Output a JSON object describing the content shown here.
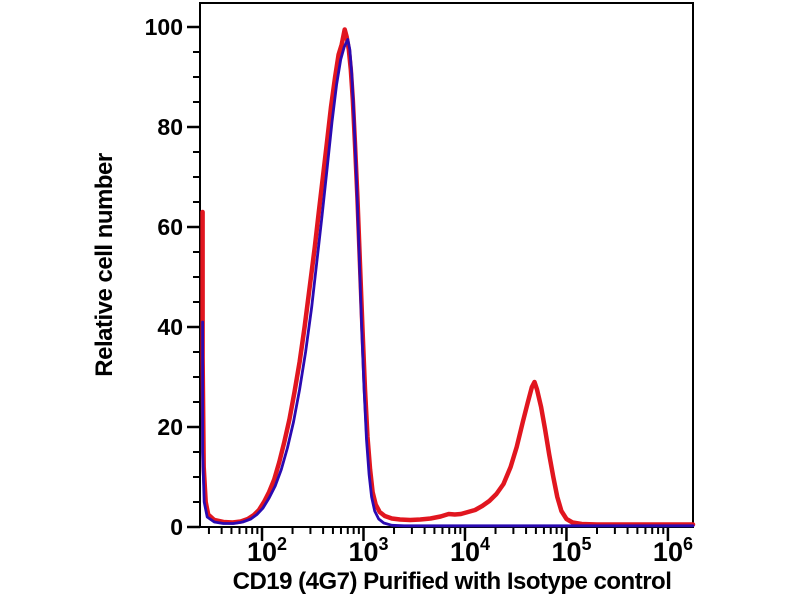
{
  "figure": {
    "background_color": "#ffffff",
    "frame_color": "#000000",
    "tick_color": "#000000",
    "text_color": "#000000"
  },
  "chart_data": {
    "type": "line",
    "subtype": "flow-cytometry-histogram-overlay",
    "title": "",
    "xlabel": "CD19 (4G7) Purified with Isotype control",
    "ylabel": "Relative cell number",
    "x_scale": "log",
    "x_domain_log10": [
      1.389,
      6.247
    ],
    "y_domain": [
      0,
      104.8
    ],
    "grid": false,
    "legend": false,
    "y_major_ticks": [
      0,
      20,
      40,
      60,
      80,
      100
    ],
    "y_minor_tick_step": 5,
    "x_major_ticks_log10": [
      2,
      3,
      4,
      5,
      6
    ],
    "x_major_tick_labels": [
      {
        "base": "10",
        "exponent": "2"
      },
      {
        "base": "10",
        "exponent": "3"
      },
      {
        "base": "10",
        "exponent": "4"
      },
      {
        "base": "10",
        "exponent": "5"
      },
      {
        "base": "10",
        "exponent": "6"
      }
    ],
    "x_minor_tick_mantissas": [
      2,
      3,
      4,
      5,
      6,
      7,
      8,
      9
    ],
    "series": [
      {
        "name": "CD19 (4G7) Purified",
        "color": "#e1161f",
        "stroke_width": 4.5,
        "peaks": [
          {
            "x_log10": 2.815,
            "height": 99.5
          },
          {
            "x_log10": 4.685,
            "height": 29
          }
        ],
        "edge_spike_height": 63,
        "points_log10x_y": [
          [
            1.415,
            63
          ],
          [
            1.415,
            34
          ],
          [
            1.425,
            12
          ],
          [
            1.445,
            5
          ],
          [
            1.47,
            2.5
          ],
          [
            1.53,
            1.4
          ],
          [
            1.62,
            1.0
          ],
          [
            1.71,
            0.9
          ],
          [
            1.79,
            1.1
          ],
          [
            1.86,
            1.6
          ],
          [
            1.92,
            2.4
          ],
          [
            1.97,
            3.4
          ],
          [
            2.02,
            5
          ],
          [
            2.07,
            7
          ],
          [
            2.12,
            9.5
          ],
          [
            2.17,
            13
          ],
          [
            2.22,
            17
          ],
          [
            2.27,
            21.5
          ],
          [
            2.32,
            27
          ],
          [
            2.37,
            33
          ],
          [
            2.42,
            40
          ],
          [
            2.47,
            48
          ],
          [
            2.52,
            56
          ],
          [
            2.56,
            63
          ],
          [
            2.6,
            70
          ],
          [
            2.64,
            77
          ],
          [
            2.68,
            84
          ],
          [
            2.72,
            90
          ],
          [
            2.755,
            94.5
          ],
          [
            2.785,
            96.5
          ],
          [
            2.815,
            99.5
          ],
          [
            2.835,
            98
          ],
          [
            2.855,
            95.5
          ],
          [
            2.875,
            91.5
          ],
          [
            2.895,
            85.5
          ],
          [
            2.915,
            77
          ],
          [
            2.94,
            66
          ],
          [
            2.965,
            53
          ],
          [
            2.99,
            39.5
          ],
          [
            3.015,
            27.5
          ],
          [
            3.04,
            18
          ],
          [
            3.065,
            11.5
          ],
          [
            3.09,
            7
          ],
          [
            3.12,
            4.5
          ],
          [
            3.16,
            3
          ],
          [
            3.21,
            2.2
          ],
          [
            3.28,
            1.7
          ],
          [
            3.36,
            1.5
          ],
          [
            3.46,
            1.4
          ],
          [
            3.56,
            1.5
          ],
          [
            3.66,
            1.7
          ],
          [
            3.76,
            2.1
          ],
          [
            3.84,
            2.6
          ],
          [
            3.9,
            2.5
          ],
          [
            3.96,
            2.6
          ],
          [
            4.03,
            3
          ],
          [
            4.1,
            3.4
          ],
          [
            4.17,
            4.2
          ],
          [
            4.24,
            5.2
          ],
          [
            4.31,
            6.6
          ],
          [
            4.38,
            8.6
          ],
          [
            4.45,
            12
          ],
          [
            4.51,
            16
          ],
          [
            4.57,
            21
          ],
          [
            4.62,
            25
          ],
          [
            4.66,
            28
          ],
          [
            4.685,
            29
          ],
          [
            4.71,
            27.5
          ],
          [
            4.75,
            24
          ],
          [
            4.79,
            19.5
          ],
          [
            4.83,
            14.5
          ],
          [
            4.87,
            10
          ],
          [
            4.91,
            6
          ],
          [
            4.95,
            3.2
          ],
          [
            5.0,
            1.6
          ],
          [
            5.06,
            0.9
          ],
          [
            5.15,
            0.6
          ],
          [
            5.3,
            0.5
          ],
          [
            5.55,
            0.5
          ],
          [
            5.8,
            0.5
          ],
          [
            6.05,
            0.5
          ],
          [
            6.247,
            0.5
          ]
        ]
      },
      {
        "name": "Isotype control",
        "color": "#2a0ab2",
        "stroke_width": 2.8,
        "peaks": [
          {
            "x_log10": 2.845,
            "height": 97.5
          }
        ],
        "edge_spike_height": 41,
        "points_log10x_y": [
          [
            1.415,
            41
          ],
          [
            1.415,
            15
          ],
          [
            1.43,
            5
          ],
          [
            1.46,
            2
          ],
          [
            1.53,
            1
          ],
          [
            1.62,
            0.7
          ],
          [
            1.72,
            0.7
          ],
          [
            1.81,
            1.0
          ],
          [
            1.89,
            1.6
          ],
          [
            1.95,
            2.5
          ],
          [
            2.01,
            3.8
          ],
          [
            2.07,
            5.8
          ],
          [
            2.13,
            8.2
          ],
          [
            2.19,
            11.5
          ],
          [
            2.25,
            15.8
          ],
          [
            2.31,
            21
          ],
          [
            2.37,
            27.5
          ],
          [
            2.43,
            35
          ],
          [
            2.49,
            44
          ],
          [
            2.54,
            53
          ],
          [
            2.59,
            62
          ],
          [
            2.64,
            71.5
          ],
          [
            2.69,
            81
          ],
          [
            2.735,
            88.5
          ],
          [
            2.775,
            93.5
          ],
          [
            2.81,
            96
          ],
          [
            2.845,
            97.5
          ],
          [
            2.865,
            95.5
          ],
          [
            2.885,
            90.5
          ],
          [
            2.905,
            82.5
          ],
          [
            2.93,
            70
          ],
          [
            2.955,
            56
          ],
          [
            2.98,
            41
          ],
          [
            3.005,
            28
          ],
          [
            3.03,
            17.5
          ],
          [
            3.055,
            10.5
          ],
          [
            3.08,
            6
          ],
          [
            3.11,
            3.2
          ],
          [
            3.15,
            1.6
          ],
          [
            3.2,
            0.8
          ],
          [
            3.28,
            0.35
          ],
          [
            3.4,
            0.25
          ],
          [
            3.7,
            0.25
          ],
          [
            4.0,
            0.25
          ],
          [
            4.3,
            0.25
          ],
          [
            4.6,
            0.25
          ],
          [
            4.9,
            0.25
          ],
          [
            5.2,
            0.25
          ],
          [
            5.5,
            0.25
          ],
          [
            5.8,
            0.25
          ],
          [
            6.1,
            0.25
          ],
          [
            6.247,
            0.25
          ]
        ]
      }
    ]
  }
}
